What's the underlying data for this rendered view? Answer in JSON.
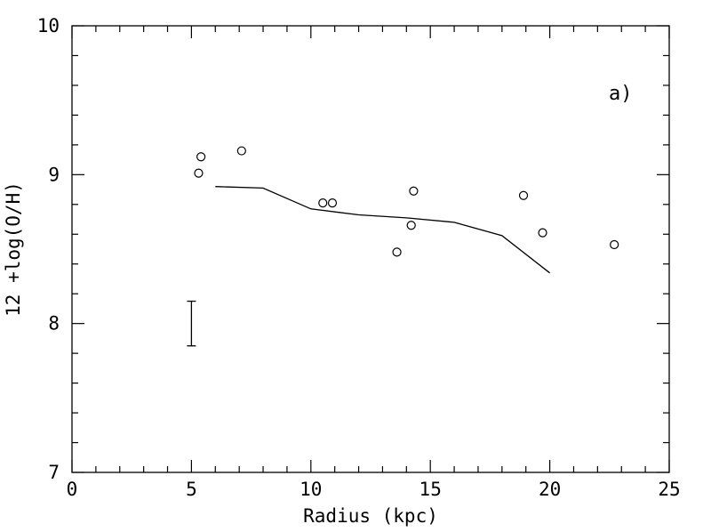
{
  "chart_data": {
    "type": "scatter",
    "title": "",
    "panel_label": "a)",
    "xlabel": "Radius (kpc)",
    "ylabel": "12 +log(O/H)",
    "xlim": [
      0,
      25
    ],
    "ylim": [
      7,
      10
    ],
    "x_ticks": [
      0,
      5,
      10,
      15,
      20,
      25
    ],
    "y_ticks": [
      7,
      8,
      9,
      10
    ],
    "x_minor_step": 1,
    "y_minor_step": 0.2,
    "grid": false,
    "points": [
      {
        "x": 5.3,
        "y": 9.01
      },
      {
        "x": 5.4,
        "y": 9.12
      },
      {
        "x": 7.1,
        "y": 9.16
      },
      {
        "x": 10.5,
        "y": 8.81
      },
      {
        "x": 10.9,
        "y": 8.81
      },
      {
        "x": 13.6,
        "y": 8.48
      },
      {
        "x": 14.2,
        "y": 8.66
      },
      {
        "x": 14.3,
        "y": 8.89
      },
      {
        "x": 18.9,
        "y": 8.86
      },
      {
        "x": 19.7,
        "y": 8.61
      },
      {
        "x": 22.7,
        "y": 8.53
      }
    ],
    "line": {
      "x": [
        6,
        8,
        10,
        12,
        14,
        16,
        18,
        20
      ],
      "y": [
        8.92,
        8.91,
        8.77,
        8.73,
        8.71,
        8.68,
        8.59,
        8.34
      ]
    },
    "error_bar": {
      "x": 5,
      "y_low": 7.85,
      "y_high": 8.15
    }
  }
}
